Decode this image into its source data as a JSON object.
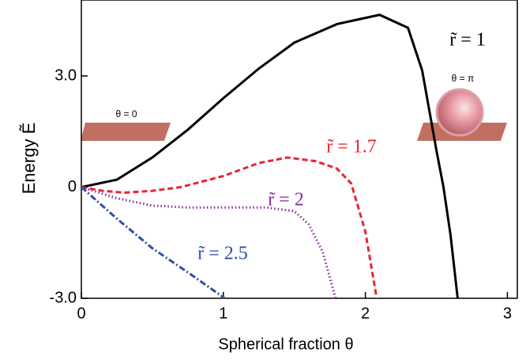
{
  "chart_data": {
    "type": "line",
    "x_label": "Spherical fraction  θ",
    "y_label": "Energy Ẽ",
    "annotations": [
      "θ = 0",
      "θ = π"
    ],
    "xlim": [
      0,
      3.07
    ],
    "ylim": [
      -3,
      5.05
    ],
    "xticks": [
      0,
      1,
      2,
      3
    ],
    "yticks": [
      {
        "value": -3,
        "label": "-3.0"
      },
      0,
      {
        "value": 3,
        "label": "3.0"
      }
    ],
    "series": [
      {
        "name": "r̃ = 1",
        "color": "#000000",
        "dash": "solid",
        "x": [
          0,
          0.25,
          0.5,
          0.75,
          1.0,
          1.25,
          1.5,
          1.8,
          2.1,
          2.3,
          2.4,
          2.5,
          2.55,
          2.6,
          2.65
        ],
        "values": [
          0,
          0.2,
          0.8,
          1.55,
          2.4,
          3.2,
          3.9,
          4.4,
          4.65,
          4.3,
          3.15,
          1.0,
          0,
          -1.3,
          -3
        ]
      },
      {
        "name": "r̃ = 1.7",
        "color": "#e8262e",
        "dash": "dashed",
        "x": [
          0,
          0.15,
          0.3,
          0.5,
          0.7,
          1.0,
          1.25,
          1.45,
          1.65,
          1.8,
          1.9,
          2.0,
          2.08
        ],
        "values": [
          0,
          -0.1,
          -0.15,
          -0.1,
          0,
          0.3,
          0.65,
          0.8,
          0.7,
          0.5,
          0.1,
          -1.2,
          -3
        ]
      },
      {
        "name": "r̃ = 2",
        "color": "#8a2c9a",
        "dash": "dotted",
        "x": [
          0,
          0.25,
          0.5,
          0.75,
          1.0,
          1.3,
          1.5,
          1.6,
          1.7,
          1.79
        ],
        "values": [
          0,
          -0.3,
          -0.5,
          -0.55,
          -0.55,
          -0.55,
          -0.65,
          -1.0,
          -1.75,
          -3
        ]
      },
      {
        "name": "r̃ = 2.5",
        "color": "#2f4fa3",
        "dash": "dashdot",
        "x": [
          0,
          0.25,
          0.5,
          0.75,
          1.01
        ],
        "values": [
          0,
          -0.85,
          -1.65,
          -2.3,
          -3
        ]
      }
    ]
  }
}
